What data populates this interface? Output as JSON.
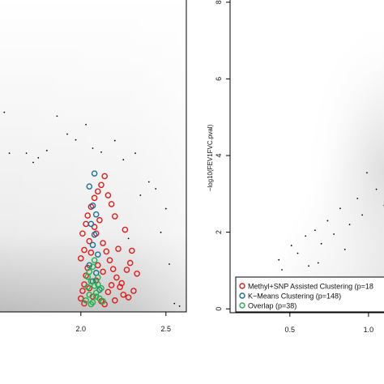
{
  "chart_data": [
    {
      "type": "scatter",
      "panel": "left",
      "xlim": [
        1.52,
        2.62
      ],
      "ylim": [
        -0.1,
        8.1
      ],
      "x_ticks": [
        {
          "value": 2.0,
          "label": "2.0"
        },
        {
          "value": 2.5,
          "label": "2.5"
        }
      ],
      "background": "gray density shading",
      "series": [
        {
          "marker": "dot",
          "color": "#000000",
          "points": [
            [
              1.55,
              5.12
            ],
            [
              1.58,
              4.05
            ],
            [
              1.68,
              4.05
            ],
            [
              1.72,
              3.81
            ],
            [
              1.75,
              3.93
            ],
            [
              1.8,
              4.12
            ],
            [
              1.86,
              5.02
            ],
            [
              1.92,
              4.55
            ],
            [
              1.97,
              4.4
            ],
            [
              2.03,
              4.8
            ],
            [
              2.07,
              4.18
            ],
            [
              2.12,
              4.08
            ],
            [
              2.2,
              4.38
            ],
            [
              2.25,
              3.88
            ],
            [
              2.32,
              4.05
            ],
            [
              2.4,
              3.3
            ],
            [
              2.44,
              3.12
            ],
            [
              2.5,
              2.6
            ],
            [
              2.55,
              0.12
            ],
            [
              2.47,
              1.98
            ],
            [
              2.52,
              1.15
            ],
            [
              2.35,
              2.95
            ],
            [
              2.28,
              1.82
            ],
            [
              2.58,
              0.05
            ]
          ]
        },
        {
          "marker": "open-circle",
          "color": "#dd1c1c",
          "points": [
            [
              2.0,
              0.25
            ],
            [
              2.01,
              0.45
            ],
            [
              2.02,
              0.62
            ],
            [
              2.03,
              0.85
            ],
            [
              2.04,
              1.05
            ],
            [
              2.0,
              1.3
            ],
            [
              2.02,
              1.52
            ],
            [
              2.05,
              1.75
            ],
            [
              2.01,
              1.95
            ],
            [
              2.03,
              2.2
            ],
            [
              2.04,
              2.42
            ],
            [
              2.06,
              2.65
            ],
            [
              2.08,
              2.88
            ],
            [
              2.1,
              3.05
            ],
            [
              2.12,
              3.22
            ],
            [
              2.14,
              3.45
            ],
            [
              2.16,
              2.95
            ],
            [
              2.18,
              2.72
            ],
            [
              2.2,
              2.4
            ],
            [
              2.11,
              2.3
            ],
            [
              2.09,
              1.95
            ],
            [
              2.13,
              1.7
            ],
            [
              2.15,
              1.48
            ],
            [
              2.17,
              1.25
            ],
            [
              2.19,
              1.02
            ],
            [
              2.21,
              0.8
            ],
            [
              2.23,
              0.55
            ],
            [
              2.25,
              0.35
            ],
            [
              2.07,
              0.3
            ],
            [
              2.12,
              0.18
            ],
            [
              2.16,
              0.42
            ],
            [
              2.2,
              0.2
            ],
            [
              2.24,
              0.65
            ],
            [
              2.27,
              1.0
            ],
            [
              2.29,
              1.18
            ],
            [
              2.31,
              0.45
            ],
            [
              2.22,
              1.55
            ],
            [
              2.26,
              2.05
            ],
            [
              2.02,
              0.12
            ],
            [
              2.05,
              0.52
            ],
            [
              2.09,
              0.72
            ],
            [
              2.13,
              0.95
            ],
            [
              2.18,
              0.6
            ],
            [
              2.28,
              0.28
            ],
            [
              2.33,
              0.9
            ],
            [
              2.06,
              1.45
            ],
            [
              2.1,
              1.12
            ],
            [
              2.14,
              0.1
            ],
            [
              2.3,
              1.5
            ],
            [
              2.08,
              2.12
            ]
          ]
        },
        {
          "marker": "open-circle",
          "color": "#1b6f95",
          "points": [
            [
              2.08,
              3.52
            ],
            [
              2.05,
              3.18
            ],
            [
              2.07,
              2.68
            ],
            [
              2.09,
              2.45
            ],
            [
              2.06,
              2.2
            ],
            [
              2.08,
              1.92
            ],
            [
              2.07,
              1.65
            ],
            [
              2.1,
              1.4
            ],
            [
              2.05,
              1.12
            ],
            [
              2.09,
              0.92
            ],
            [
              2.07,
              0.7
            ],
            [
              2.11,
              0.48
            ]
          ]
        },
        {
          "marker": "open-circle",
          "color": "#22b14c",
          "points": [
            [
              2.03,
              0.2
            ],
            [
              2.05,
              0.35
            ],
            [
              2.07,
              0.15
            ],
            [
              2.09,
              0.4
            ],
            [
              2.11,
              0.25
            ],
            [
              2.04,
              0.55
            ],
            [
              2.06,
              0.7
            ],
            [
              2.08,
              0.58
            ],
            [
              2.1,
              0.8
            ],
            [
              2.12,
              0.52
            ],
            [
              2.05,
              0.95
            ],
            [
              2.07,
              1.08
            ],
            [
              2.09,
              0.3
            ],
            [
              2.13,
              0.18
            ],
            [
              2.06,
              0.1
            ],
            [
              2.1,
              0.62
            ],
            [
              2.08,
              1.25
            ],
            [
              2.04,
              0.82
            ]
          ]
        }
      ]
    },
    {
      "type": "scatter",
      "panel": "right",
      "xlim": [
        0.12,
        1.15
      ],
      "ylim": [
        -0.1,
        8.1
      ],
      "ylabel": "−log10(FEV1FVC.pval)",
      "x_ticks": [
        {
          "value": 0.5,
          "label": "0.5"
        },
        {
          "value": 1.0,
          "label": "1.0"
        }
      ],
      "y_ticks": [
        {
          "value": 0,
          "label": "0"
        },
        {
          "value": 2,
          "label": "2"
        },
        {
          "value": 4,
          "label": "4"
        },
        {
          "value": 6,
          "label": "6"
        },
        {
          "value": 8,
          "label": "8"
        }
      ],
      "background": "gray density shading",
      "series": [
        {
          "marker": "dot",
          "color": "#000000",
          "points": [
            [
              0.43,
              1.28
            ],
            [
              0.45,
              1.02
            ],
            [
              0.51,
              1.65
            ],
            [
              0.55,
              1.45
            ],
            [
              0.6,
              1.9
            ],
            [
              0.62,
              1.12
            ],
            [
              0.66,
              2.05
            ],
            [
              0.7,
              1.7
            ],
            [
              0.74,
              2.3
            ],
            [
              0.78,
              1.95
            ],
            [
              0.82,
              2.62
            ],
            [
              0.88,
              2.2
            ],
            [
              0.93,
              2.88
            ],
            [
              0.96,
              2.45
            ],
            [
              0.99,
              3.55
            ],
            [
              1.05,
              3.12
            ],
            [
              1.1,
              2.7
            ],
            [
              0.4,
              0.82
            ],
            [
              0.85,
              1.55
            ],
            [
              0.68,
              1.2
            ]
          ]
        }
      ],
      "legend": {
        "position": "bottom-right",
        "entries": [
          {
            "label": "Methyl+SNP Assisted Clustering (p=18",
            "color": "#dd1c1c"
          },
          {
            "label": "K−Means Clustering (p=148)",
            "color": "#1b6f95"
          },
          {
            "label": "Overlap (p=38)",
            "color": "#22b14c"
          }
        ]
      }
    }
  ]
}
